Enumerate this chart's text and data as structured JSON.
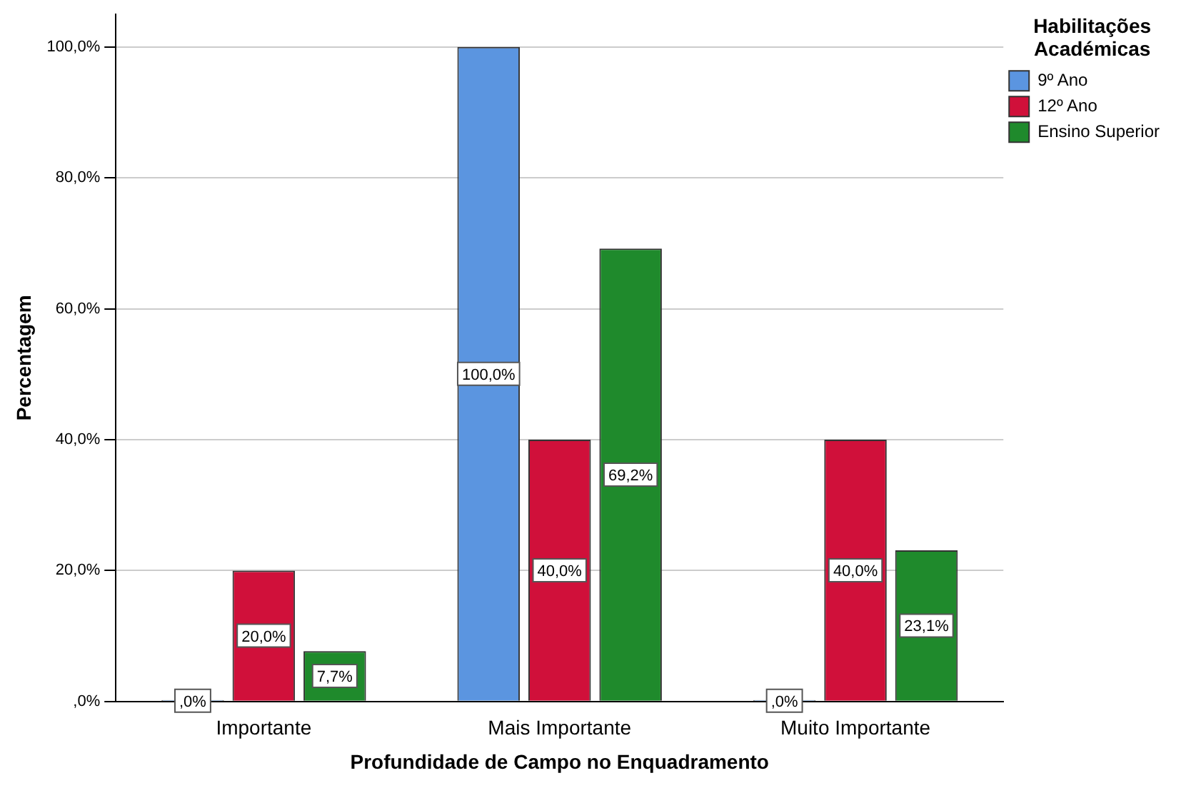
{
  "chart_data": {
    "type": "bar",
    "xlabel": "Profundidade de Campo no Enquadramento",
    "ylabel": "Percentagem",
    "legend_title": "Habilitações Académicas",
    "legend": "top right",
    "grid": "y",
    "categories": [
      "Importante",
      "Mais Importante",
      "Muito Importante"
    ],
    "series": [
      {
        "name": "9º Ano",
        "color": "#5b95e0",
        "values": [
          0,
          100,
          0
        ],
        "value_labels": [
          ",0%",
          "100,0%",
          ",0%"
        ]
      },
      {
        "name": "12º Ano",
        "color": "#d0103a",
        "values": [
          20,
          40,
          40
        ],
        "value_labels": [
          "20,0%",
          "40,0%",
          "40,0%"
        ]
      },
      {
        "name": "Ensino Superior",
        "color": "#1f8a2c",
        "values": [
          7.7,
          69.2,
          23.1
        ],
        "value_labels": [
          "7,7%",
          "69,2%",
          "23,1%"
        ]
      }
    ],
    "ylim": [
      0,
      105
    ],
    "yticks": [
      {
        "value": 0,
        "label": ",0%"
      },
      {
        "value": 20,
        "label": "20,0%"
      },
      {
        "value": 40,
        "label": "40,0%"
      },
      {
        "value": 60,
        "label": "60,0%"
      },
      {
        "value": 80,
        "label": "80,0%"
      },
      {
        "value": 100,
        "label": "100,0%"
      }
    ]
  }
}
